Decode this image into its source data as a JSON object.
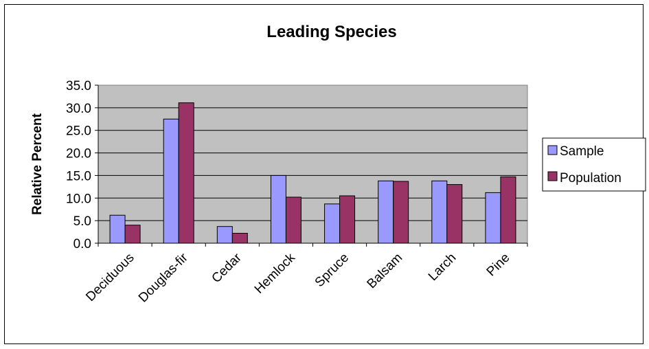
{
  "chart_data": {
    "type": "bar",
    "title": "Leading Species",
    "xlabel": "",
    "ylabel": "Relative Percent",
    "categories": [
      "Deciduous",
      "Douglas-fir",
      "Cedar",
      "Hemlock",
      "Spruce",
      "Balsam",
      "Larch",
      "Pine"
    ],
    "series": [
      {
        "name": "Sample",
        "values": [
          6.2,
          27.5,
          3.7,
          15.0,
          8.7,
          13.8,
          13.8,
          11.2
        ],
        "color": "#9999ff"
      },
      {
        "name": "Population",
        "values": [
          4.0,
          31.1,
          2.2,
          10.2,
          10.5,
          13.7,
          13.0,
          14.7
        ],
        "color": "#993366"
      }
    ],
    "ylim": [
      0,
      35
    ],
    "y_ticks": [
      "0.0",
      "5.0",
      "10.0",
      "15.0",
      "20.0",
      "25.0",
      "30.0",
      "35.0"
    ],
    "grid": true,
    "plot_background": "#c0c0c0",
    "legend_position": "right"
  }
}
